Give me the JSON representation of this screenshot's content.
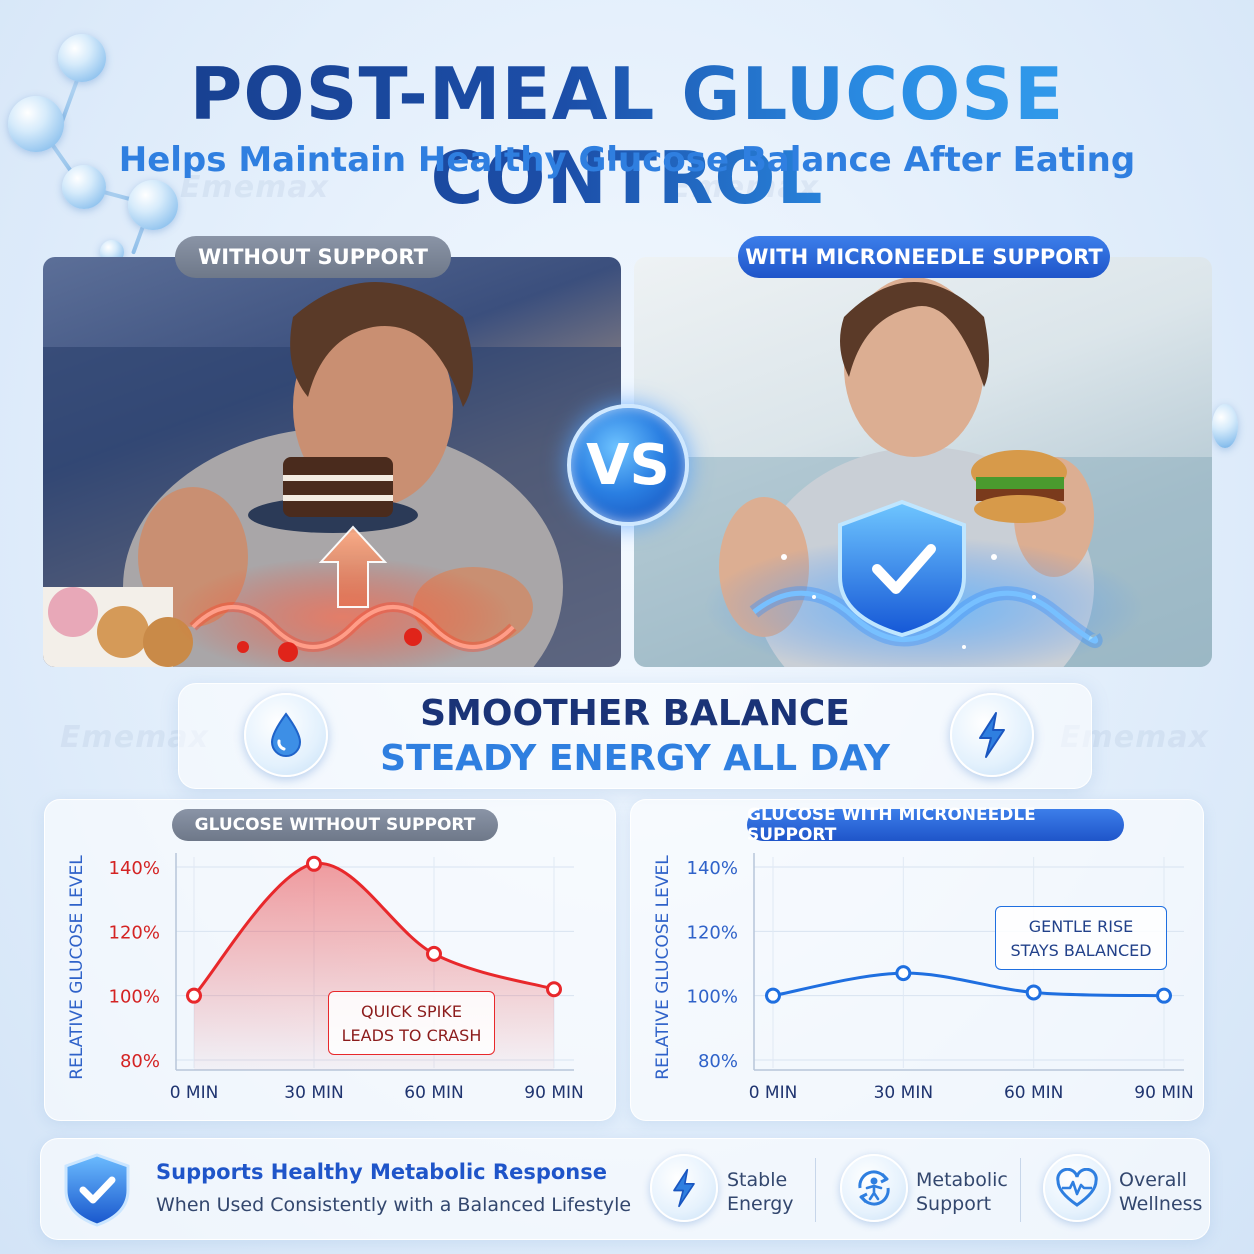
{
  "header": {
    "title": "POST-MEAL GLUCOSE CONTROL",
    "subtitle": "Helps Maintain Healthy Glucose Balance After Eating"
  },
  "comparison": {
    "left_label": "WITHOUT SUPPORT",
    "right_label": "WITH MICRONEEDLE SUPPORT",
    "vs_label": "VS"
  },
  "banner": {
    "line1": "SMOOTHER BALANCE",
    "line2": "STEADY ENERGY ALL DAY",
    "left_icon": "water-drop-icon",
    "right_icon": "lightning-icon"
  },
  "watermark": "Ememax",
  "charts": {
    "left": {
      "tag": "GLUCOSE WITHOUT SUPPORT",
      "callout_line1": "QUICK SPIKE",
      "callout_line2": "LEADS TO CRASH"
    },
    "right": {
      "tag": "GLUCOSE WITH MICRONEEDLE SUPPORT",
      "callout_line1": "GENTLE RISE",
      "callout_line2": "STAYS BALANCED"
    }
  },
  "chart_data": [
    {
      "type": "area",
      "title": "GLUCOSE WITHOUT SUPPORT",
      "ylabel": "RELATIVE GLUCOSE LEVEL",
      "xlabel": "",
      "x": [
        0,
        30,
        60,
        90
      ],
      "x_tick_labels": [
        "0 MIN",
        "30 MIN",
        "60 MIN",
        "90 MIN"
      ],
      "y_tick_labels": [
        "140%",
        "120%",
        "100%",
        "80%"
      ],
      "ylim": [
        80,
        140
      ],
      "series": [
        {
          "values": [
            100,
            141,
            113,
            102
          ],
          "color": "#e8282b"
        }
      ]
    },
    {
      "type": "line",
      "title": "GLUCOSE WITH MICRONEEDLE SUPPORT",
      "ylabel": "RELATIVE GLUCOSE LEVEL",
      "xlabel": "",
      "x": [
        0,
        30,
        60,
        90
      ],
      "x_tick_labels": [
        "0 MIN",
        "30 MIN",
        "60 MIN",
        "90 MIN"
      ],
      "y_tick_labels": [
        "140%",
        "120%",
        "100%",
        "80%"
      ],
      "ylim": [
        80,
        140
      ],
      "series": [
        {
          "values": [
            100,
            107,
            101,
            100
          ],
          "color": "#1f6fe0"
        }
      ]
    }
  ],
  "footer": {
    "title": "Supports Healthy Metabolic Response",
    "subtitle": "When Used Consistently with a Balanced Lifestyle",
    "shield_icon": "shield-check-icon",
    "features": [
      {
        "line1": "Stable",
        "line2": "Energy",
        "icon": "lightning-icon"
      },
      {
        "line1": "Metabolic",
        "line2": "Support",
        "icon": "metabolism-icon"
      },
      {
        "line1": "Overall",
        "line2": "Wellness",
        "icon": "heart-pulse-icon"
      }
    ]
  },
  "colors": {
    "title_dark": "#163a86",
    "accent_blue": "#2f7fe0",
    "spike_red": "#e8282b",
    "steady_blue": "#1f6fe0"
  }
}
